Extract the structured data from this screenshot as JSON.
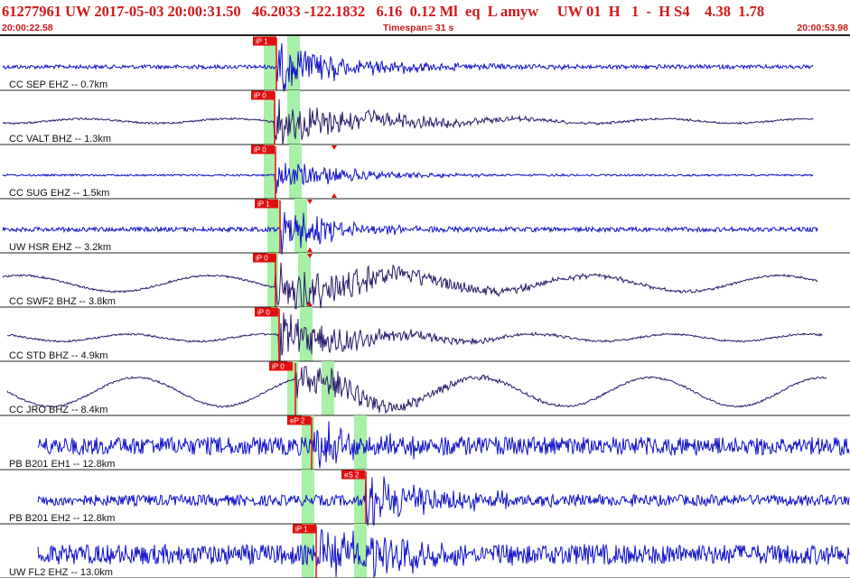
{
  "header": {
    "title": "61277961 UW 2017-05-03 20:00:31.50   46.2033 -122.1832   6.16  0.12 Ml  eq  L amyw     UW 01  H   1  -  H S4    4.38  1.78",
    "time_start": "20:00:22.58",
    "timespan": "Timespan=  31 s",
    "time_end": "20:00:53.98"
  },
  "colors": {
    "accent": "#d01818",
    "waveform_blue": "#1010c8",
    "waveform_navy": "#2a1a6a",
    "pick_box": "#e01010",
    "window_green": "#a8f0a8",
    "divider": "#222222"
  },
  "traces": [
    {
      "label": "CC SEP EHZ -- 0.7km",
      "pick": "iP 1",
      "color": "blue"
    },
    {
      "label": "CC VALT BHZ -- 1.3km",
      "pick": "iP 0",
      "color": "navy"
    },
    {
      "label": "CC SUG EHZ -- 1.5km",
      "pick": "iP 0",
      "color": "blue"
    },
    {
      "label": "UW HSR EHZ -- 3.2km",
      "pick": "iP 1",
      "color": "blue"
    },
    {
      "label": "CC SWF2 BHZ -- 3.8km",
      "pick": "iP 0",
      "color": "navy"
    },
    {
      "label": "CC STD BHZ -- 4.9km",
      "pick": "iP 0",
      "color": "navy"
    },
    {
      "label": "CC JRO BHZ -- 8.4km",
      "pick": "iP 0",
      "color": "navy"
    },
    {
      "label": "PB B201 EH1 -- 12.8km",
      "pick": "eP 2",
      "color": "blue"
    },
    {
      "label": "PB B201 EH2 -- 12.8km",
      "pick": "eS 2",
      "color": "blue"
    },
    {
      "label": "UW FL2 EHZ -- 13.0km",
      "pick": "iP 1",
      "color": "blue"
    }
  ]
}
